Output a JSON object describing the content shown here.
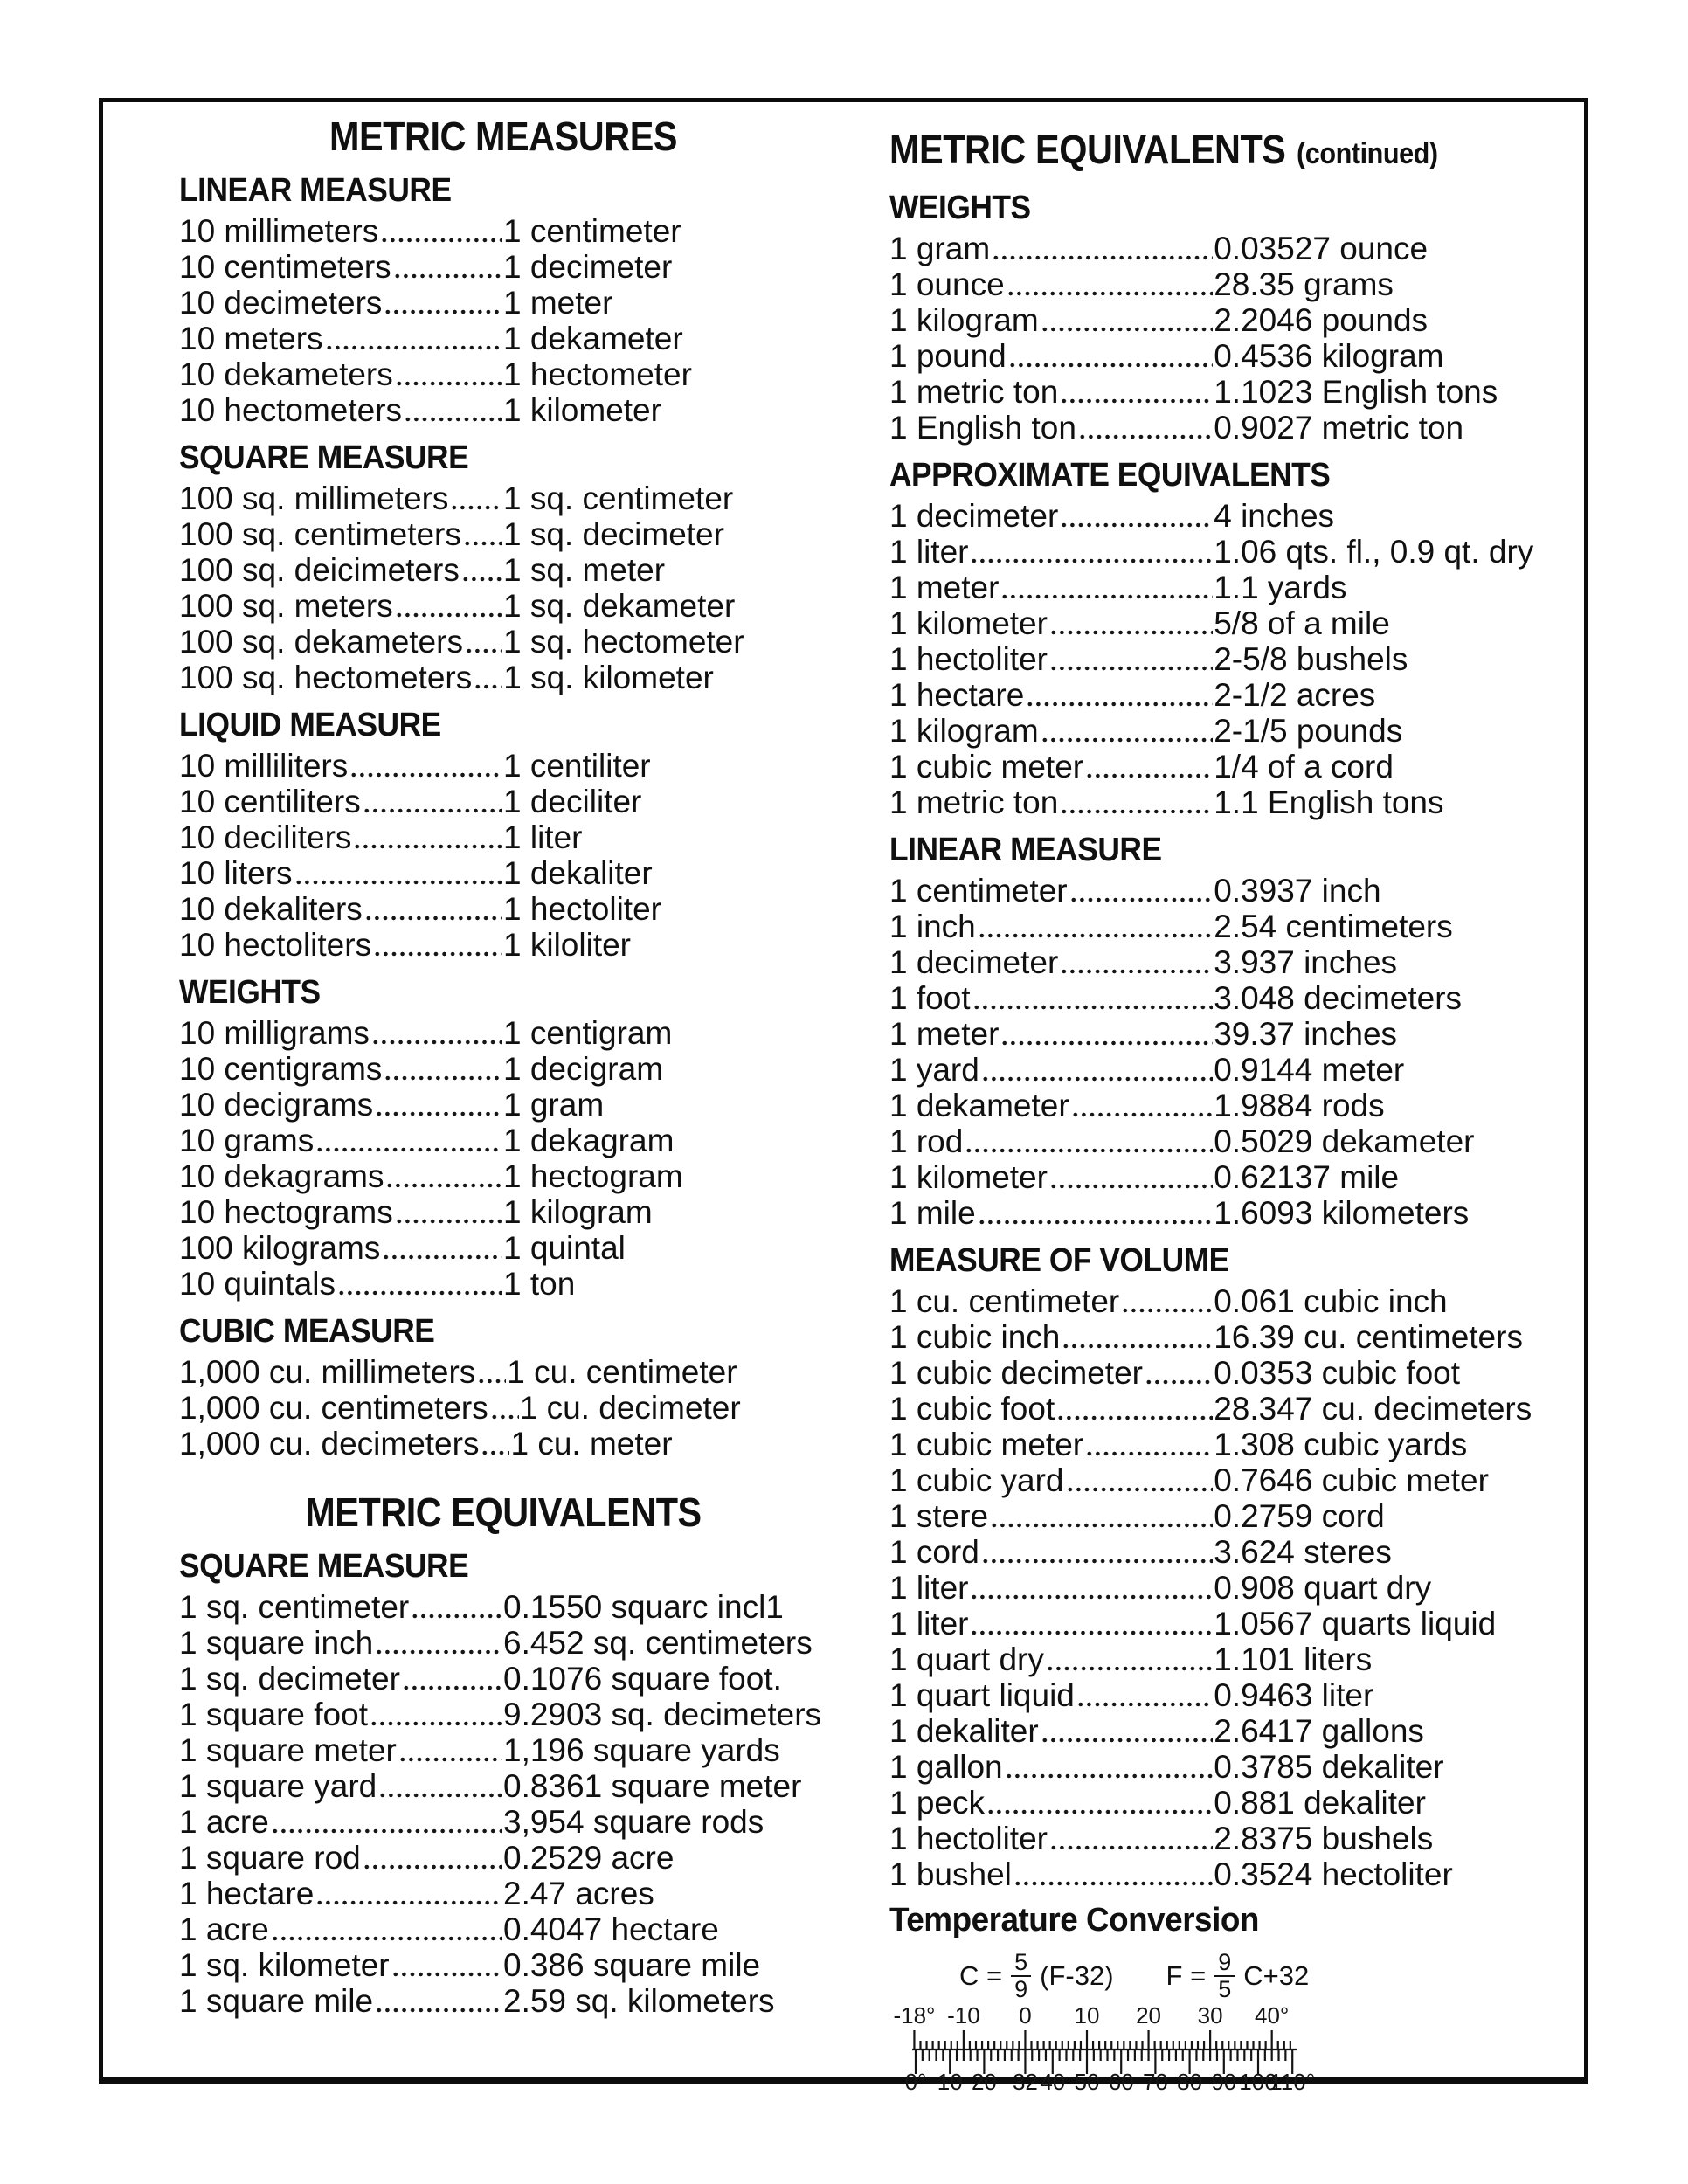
{
  "colors": {
    "ink": "#101010",
    "background": "#ffffff",
    "border": "#0c0c0c"
  },
  "page": {
    "left": {
      "blocks": [
        {
          "type": "title",
          "text": "METRIC MEASURES"
        },
        {
          "type": "section",
          "heading": "LINEAR MEASURE",
          "rows": [
            {
              "term": "10 millimeters",
              "value": "1 centimeter"
            },
            {
              "term": "10 centimeters",
              "value": "1 decimeter"
            },
            {
              "term": "10 decimeters",
              "value": "1 meter"
            },
            {
              "term": "10 meters",
              "value": "1 dekameter"
            },
            {
              "term": "10 dekameters",
              "value": "1 hectometer"
            },
            {
              "term": "10 hectometers",
              "value": "1 kilometer"
            }
          ]
        },
        {
          "type": "section",
          "heading": "SQUARE MEASURE",
          "rows": [
            {
              "term": "100 sq. millimeters",
              "value": "1 sq. centimeter"
            },
            {
              "term": "100 sq. centimeters",
              "value": "1 sq. decimeter"
            },
            {
              "term": "100 sq. deicimeters",
              "value": "1 sq. meter"
            },
            {
              "term": "100 sq. meters",
              "value": "1 sq. dekameter"
            },
            {
              "term": "100 sq. dekameters",
              "value": "1 sq. hectometer"
            },
            {
              "term": "100 sq. hectometers",
              "value": "1 sq. kilometer"
            }
          ]
        },
        {
          "type": "section",
          "heading": "LIQUID MEASURE",
          "rows": [
            {
              "term": "10 milliliters",
              "value": "1 centiliter"
            },
            {
              "term": "10 centiliters",
              "value": "1 deciliter"
            },
            {
              "term": "10 deciliters",
              "value": "1 liter"
            },
            {
              "term": "10 liters",
              "value": "1 dekaliter"
            },
            {
              "term": "10 dekaliters",
              "value": "1 hectoliter"
            },
            {
              "term": "10 hectoliters",
              "value": "1 kiloliter"
            }
          ]
        },
        {
          "type": "section",
          "heading": "WEIGHTS",
          "rows": [
            {
              "term": "10 milligrams",
              "value": "1 centigram"
            },
            {
              "term": "10 centigrams",
              "value": "1 decigram"
            },
            {
              "term": "10 decigrams",
              "value": "1 gram"
            },
            {
              "term": "10 grams",
              "value": "1 dekagram"
            },
            {
              "term": "10 dekagrams",
              "value": "1 hectogram"
            },
            {
              "term": "10 hectograms",
              "value": "1 kilogram"
            },
            {
              "term": "100 kilograms",
              "value": "1 quintal"
            },
            {
              "term": "10 quintals",
              "value": "1 ton"
            }
          ]
        },
        {
          "type": "section",
          "heading": "CUBIC MEASURE",
          "rows": [
            {
              "term": "1,000 cu. millimeters",
              "value": "1 cu. centimeter"
            },
            {
              "term": "1,000 cu. centimeters",
              "value": "1 cu. decimeter"
            },
            {
              "term": "1,000 cu. decimeters",
              "value": "1 cu. meter"
            }
          ]
        },
        {
          "type": "title",
          "text": "METRIC EQUIVALENTS"
        },
        {
          "type": "section",
          "heading": "SQUARE MEASURE",
          "rows": [
            {
              "term": "1 sq. centimeter",
              "value": "0.1550 squarc incl1"
            },
            {
              "term": "1 square inch",
              "value": "6.452 sq. centimeters"
            },
            {
              "term": "1 sq. decimeter",
              "value": "0.1076 square foot."
            },
            {
              "term": "1 square foot",
              "value": "9.2903 sq. decimeters"
            },
            {
              "term": "1 square meter",
              "value": "1,196 square yards"
            },
            {
              "term": "1 square yard",
              "value": "0.8361 square meter"
            },
            {
              "term": "1 acre",
              "value": "3,954 square rods"
            },
            {
              "term": "1 square rod",
              "value": "0.2529 acre"
            },
            {
              "term": "1 hectare",
              "value": "2.47 acres"
            },
            {
              "term": "1 acre",
              "value": "0.4047 hectare"
            },
            {
              "term": "1 sq. kilometer",
              "value": "0.386 square mile"
            },
            {
              "term": "1 square mile",
              "value": "2.59 sq. kilometers"
            }
          ]
        }
      ]
    },
    "right": {
      "blocks": [
        {
          "type": "title",
          "text": "METRIC EQUIVALENTS",
          "suffix": "(continued)"
        },
        {
          "type": "section",
          "heading": "WEIGHTS",
          "rows": [
            {
              "term": "1 gram",
              "value": "0.03527 ounce"
            },
            {
              "term": "1 ounce",
              "value": "28.35 grams"
            },
            {
              "term": "1 kilogram",
              "value": "2.2046 pounds"
            },
            {
              "term": "1 pound",
              "value": "0.4536 kilogram"
            },
            {
              "term": "1 metric ton",
              "value": "1.1023 English tons"
            },
            {
              "term": "1 English ton",
              "value": "0.9027 metric ton"
            }
          ]
        },
        {
          "type": "section",
          "heading": "APPROXIMATE EQUIVALENTS",
          "rows": [
            {
              "term": "1 decimeter",
              "value": "4 inches"
            },
            {
              "term": "1 liter",
              "value": "1.06 qts. fl., 0.9 qt. dry"
            },
            {
              "term": "1 meter",
              "value": "1.1 yards"
            },
            {
              "term": "1 kilometer",
              "value": "5/8 of a mile"
            },
            {
              "term": "1 hectoliter",
              "value": "2-5/8 bushels"
            },
            {
              "term": "1 hectare",
              "value": "2-1/2 acres"
            },
            {
              "term": "1 kilogram",
              "value": "2-1/5 pounds"
            },
            {
              "term": "1 cubic meter",
              "value": "1/4 of a cord"
            },
            {
              "term": "1 metric ton",
              "value": "1.1 English tons"
            }
          ]
        },
        {
          "type": "section",
          "heading": "LINEAR MEASURE",
          "rows": [
            {
              "term": "1 centimeter",
              "value": "0.3937 inch"
            },
            {
              "term": "1 inch",
              "value": "2.54 centimeters"
            },
            {
              "term": "1 decimeter",
              "value": "3.937 inches"
            },
            {
              "term": "1 foot",
              "value": "3.048 decimeters"
            },
            {
              "term": "1 meter",
              "value": "39.37 inches"
            },
            {
              "term": "1 yard",
              "value": "0.9144 meter"
            },
            {
              "term": "1 dekameter",
              "value": "1.9884 rods"
            },
            {
              "term": "1 rod",
              "value": "0.5029 dekameter"
            },
            {
              "term": "1 kilometer",
              "value": "0.62137 mile"
            },
            {
              "term": "1 mile",
              "value": "1.6093 kilometers"
            }
          ]
        },
        {
          "type": "section",
          "heading": "MEASURE OF VOLUME",
          "rows": [
            {
              "term": "1 cu. centimeter",
              "value": "0.061 cubic inch"
            },
            {
              "term": "1 cubic inch",
              "value": "16.39 cu. centimeters"
            },
            {
              "term": "1 cubic decimeter",
              "value": "0.0353 cubic foot"
            },
            {
              "term": "1 cubic foot",
              "value": "28.347 cu. decimeters"
            },
            {
              "term": "1 cubic meter",
              "value": "1.308 cubic yards"
            },
            {
              "term": "1 cubic yard",
              "value": "0.7646 cubic meter"
            },
            {
              "term": "1 stere",
              "value": "0.2759 cord"
            },
            {
              "term": "1 cord",
              "value": "3.624 steres"
            },
            {
              "term": "1 liter",
              "value": "0.908 quart dry"
            },
            {
              "term": "1 liter",
              "value": "1.0567 quarts liquid"
            },
            {
              "term": "1 quart dry",
              "value": "1.101 liters"
            },
            {
              "term": "1 quart liquid",
              "value": "0.9463 liter"
            },
            {
              "term": "1 dekaliter",
              "value": "2.6417 gallons"
            },
            {
              "term": "1 gallon",
              "value": "0.3785 dekaliter"
            },
            {
              "term": "1 peck",
              "value": "0.881 dekaliter"
            },
            {
              "term": "1 hectoliter",
              "value": "2.8375 bushels"
            },
            {
              "term": "1 bushel",
              "value": "0.3524 hectoliter"
            }
          ]
        },
        {
          "type": "temperature",
          "heading": "Temperature Conversion",
          "formulas": [
            {
              "lhs": "C =",
              "num": "5",
              "den": "9",
              "rhs": "(F-32)"
            },
            {
              "lhs": "F =",
              "num": "9",
              "den": "5",
              "rhs": "C+32"
            }
          ],
          "scale": {
            "celsius": {
              "labels": [
                "-18°",
                "-10",
                "0",
                "10",
                "20",
                "30",
                "40°"
              ],
              "values": [
                -18,
                -10,
                0,
                10,
                20,
                30,
                40
              ]
            },
            "fahrenheit": {
              "labels": [
                "0°",
                "10",
                "20",
                "32",
                "40",
                "50",
                "60",
                "70",
                "80",
                "90",
                "100",
                "110°"
              ],
              "values": [
                0,
                10,
                20,
                32,
                40,
                50,
                60,
                70,
                80,
                90,
                100,
                110
              ]
            }
          }
        }
      ]
    }
  }
}
